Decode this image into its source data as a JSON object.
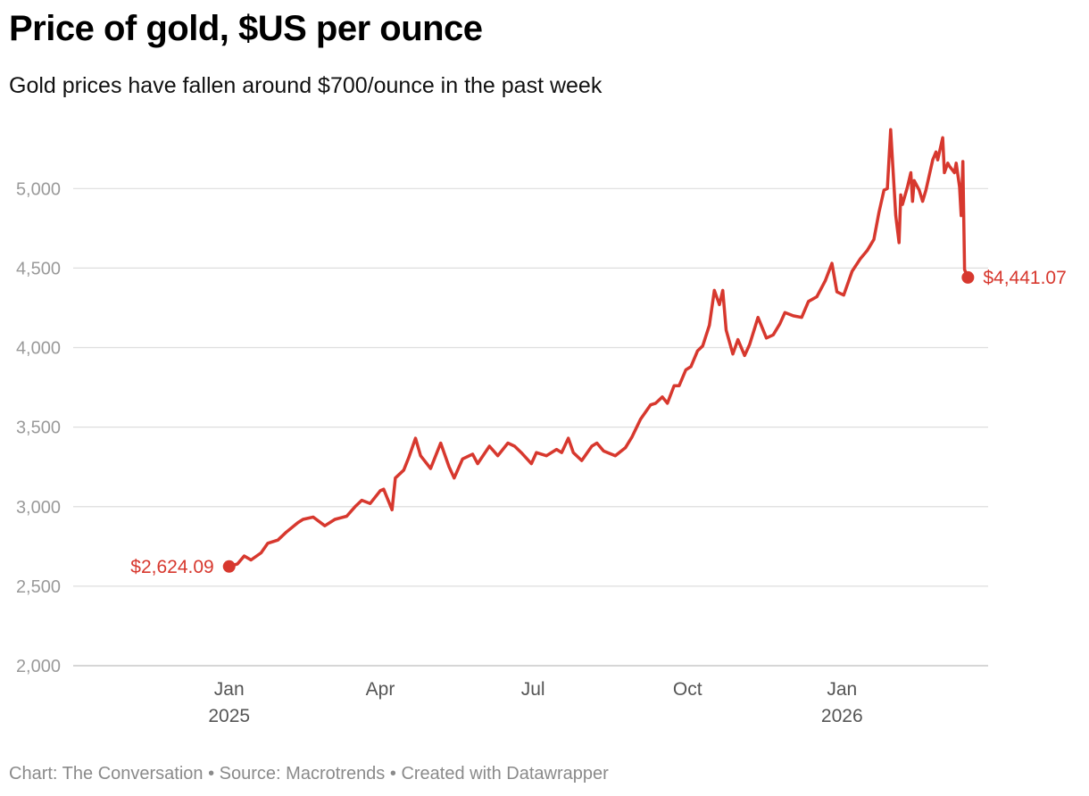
{
  "header": {
    "title": "Price of gold, $US per ounce",
    "subtitle": "Gold prices have fallen around $700/ounce in the past week"
  },
  "footer": {
    "credit_prefix": "Chart: ",
    "chart_credit": "The Conversation",
    "source_prefix": "Source: ",
    "source": "Macrotrends",
    "created_with": "Created with Datawrapper",
    "separator": " • "
  },
  "colors": {
    "line": "#d7382e",
    "grid": "#dedede",
    "tick_text": "#9a9a9a",
    "axis_text": "#555555"
  },
  "chart_data": {
    "type": "line",
    "title": "Price of gold, $US per ounce",
    "subtitle": "Gold prices have fallen around $700/ounce in the past week",
    "xlabel": "",
    "ylabel": "",
    "ylim": [
      2000,
      5400
    ],
    "xlim": [
      "2024-10-15",
      "2026-03-20"
    ],
    "y_ticks": [
      2000,
      2500,
      3000,
      3500,
      4000,
      4500,
      5000
    ],
    "y_tick_labels": [
      "2,000",
      "2,500",
      "3,000",
      "3,500",
      "4,000",
      "4,500",
      "5,000"
    ],
    "x_ticks": [
      {
        "date": "2025-01-01",
        "label": "Jan",
        "year": "2025"
      },
      {
        "date": "2025-04-01",
        "label": "Apr",
        "year": ""
      },
      {
        "date": "2025-07-01",
        "label": "Jul",
        "year": ""
      },
      {
        "date": "2025-10-01",
        "label": "Oct",
        "year": ""
      },
      {
        "date": "2026-01-01",
        "label": "Jan",
        "year": "2026"
      }
    ],
    "grid": true,
    "series": [
      {
        "name": "Gold price ($US per ounce)",
        "points": [
          [
            "2025-01-01",
            2624.09
          ],
          [
            "2025-01-06",
            2640
          ],
          [
            "2025-01-10",
            2690
          ],
          [
            "2025-01-14",
            2665
          ],
          [
            "2025-01-20",
            2710
          ],
          [
            "2025-01-24",
            2770
          ],
          [
            "2025-01-30",
            2790
          ],
          [
            "2025-02-04",
            2840
          ],
          [
            "2025-02-11",
            2900
          ],
          [
            "2025-02-14",
            2920
          ],
          [
            "2025-02-20",
            2935
          ],
          [
            "2025-02-27",
            2880
          ],
          [
            "2025-03-05",
            2920
          ],
          [
            "2025-03-12",
            2940
          ],
          [
            "2025-03-17",
            3000
          ],
          [
            "2025-03-21",
            3040
          ],
          [
            "2025-03-26",
            3020
          ],
          [
            "2025-04-01",
            3100
          ],
          [
            "2025-04-03",
            3110
          ],
          [
            "2025-04-08",
            2980
          ],
          [
            "2025-04-10",
            3180
          ],
          [
            "2025-04-15",
            3230
          ],
          [
            "2025-04-18",
            3310
          ],
          [
            "2025-04-22",
            3430
          ],
          [
            "2025-04-25",
            3320
          ],
          [
            "2025-05-01",
            3240
          ],
          [
            "2025-05-07",
            3400
          ],
          [
            "2025-05-12",
            3250
          ],
          [
            "2025-05-15",
            3180
          ],
          [
            "2025-05-20",
            3300
          ],
          [
            "2025-05-26",
            3330
          ],
          [
            "2025-05-29",
            3270
          ],
          [
            "2025-06-05",
            3380
          ],
          [
            "2025-06-10",
            3320
          ],
          [
            "2025-06-16",
            3400
          ],
          [
            "2025-06-20",
            3380
          ],
          [
            "2025-06-24",
            3340
          ],
          [
            "2025-06-30",
            3270
          ],
          [
            "2025-07-03",
            3340
          ],
          [
            "2025-07-09",
            3320
          ],
          [
            "2025-07-15",
            3360
          ],
          [
            "2025-07-18",
            3340
          ],
          [
            "2025-07-22",
            3430
          ],
          [
            "2025-07-25",
            3340
          ],
          [
            "2025-07-30",
            3290
          ],
          [
            "2025-08-05",
            3380
          ],
          [
            "2025-08-08",
            3400
          ],
          [
            "2025-08-12",
            3350
          ],
          [
            "2025-08-19",
            3320
          ],
          [
            "2025-08-25",
            3370
          ],
          [
            "2025-08-29",
            3440
          ],
          [
            "2025-09-03",
            3550
          ],
          [
            "2025-09-09",
            3640
          ],
          [
            "2025-09-12",
            3650
          ],
          [
            "2025-09-16",
            3690
          ],
          [
            "2025-09-19",
            3650
          ],
          [
            "2025-09-23",
            3760
          ],
          [
            "2025-09-26",
            3760
          ],
          [
            "2025-09-30",
            3860
          ],
          [
            "2025-10-03",
            3880
          ],
          [
            "2025-10-07",
            3980
          ],
          [
            "2025-10-10",
            4010
          ],
          [
            "2025-10-14",
            4140
          ],
          [
            "2025-10-17",
            4360
          ],
          [
            "2025-10-20",
            4270
          ],
          [
            "2025-10-22",
            4360
          ],
          [
            "2025-10-24",
            4110
          ],
          [
            "2025-10-28",
            3960
          ],
          [
            "2025-10-31",
            4050
          ],
          [
            "2025-11-04",
            3950
          ],
          [
            "2025-11-07",
            4020
          ],
          [
            "2025-11-12",
            4190
          ],
          [
            "2025-11-17",
            4060
          ],
          [
            "2025-11-21",
            4080
          ],
          [
            "2025-11-25",
            4150
          ],
          [
            "2025-11-28",
            4220
          ],
          [
            "2025-12-03",
            4200
          ],
          [
            "2025-12-08",
            4190
          ],
          [
            "2025-12-12",
            4290
          ],
          [
            "2025-12-17",
            4320
          ],
          [
            "2025-12-22",
            4420
          ],
          [
            "2025-12-26",
            4530
          ],
          [
            "2025-12-29",
            4350
          ],
          [
            "2026-01-02",
            4330
          ],
          [
            "2026-01-07",
            4480
          ],
          [
            "2026-01-12",
            4560
          ],
          [
            "2026-01-16",
            4610
          ],
          [
            "2026-01-20",
            4680
          ],
          [
            "2026-01-23",
            4850
          ],
          [
            "2026-01-26",
            4990
          ],
          [
            "2026-01-28",
            5000
          ],
          [
            "2026-01-30",
            5370
          ],
          [
            "2026-02-02",
            4830
          ],
          [
            "2026-02-04",
            4660
          ],
          [
            "2026-02-05",
            4960
          ],
          [
            "2026-02-06",
            4900
          ],
          [
            "2026-02-09",
            5010
          ],
          [
            "2026-02-11",
            5100
          ],
          [
            "2026-02-12",
            4920
          ],
          [
            "2026-02-13",
            5050
          ],
          [
            "2026-02-16",
            4990
          ],
          [
            "2026-02-18",
            4920
          ],
          [
            "2026-02-20",
            4990
          ],
          [
            "2026-02-24",
            5180
          ],
          [
            "2026-02-26",
            5230
          ],
          [
            "2026-02-27",
            5180
          ],
          [
            "2026-03-02",
            5320
          ],
          [
            "2026-03-03",
            5100
          ],
          [
            "2026-03-05",
            5160
          ],
          [
            "2026-03-06",
            5140
          ],
          [
            "2026-03-09",
            5100
          ],
          [
            "2026-03-10",
            5160
          ],
          [
            "2026-03-12",
            5010
          ],
          [
            "2026-03-13",
            4830
          ],
          [
            "2026-03-14",
            5170
          ],
          [
            "2026-03-15",
            4490
          ],
          [
            "2026-03-17",
            4441.07
          ]
        ]
      }
    ],
    "annotations": [
      {
        "date": "2025-01-01",
        "value": 2624.09,
        "label": "$2,624.09",
        "side": "left"
      },
      {
        "date": "2026-03-17",
        "value": 4441.07,
        "label": "$4,441.07",
        "side": "right"
      }
    ]
  }
}
